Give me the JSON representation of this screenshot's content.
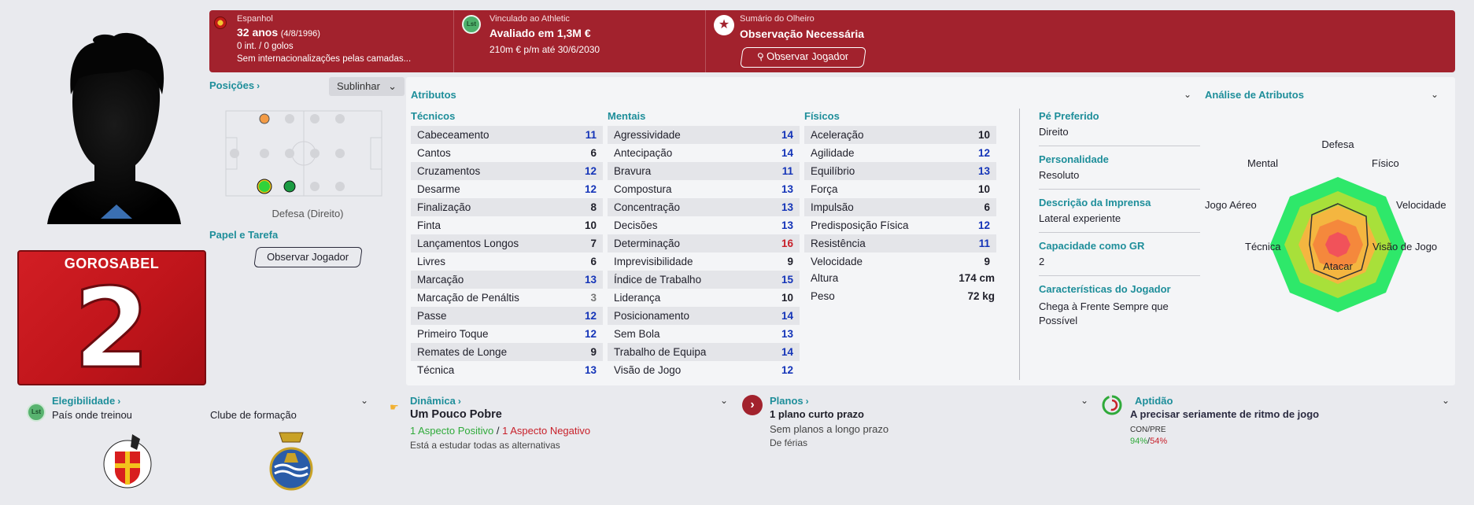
{
  "banner": {
    "nationality": "Espanhol",
    "age": "32 anos",
    "dob": "(4/8/1996)",
    "caps": "0 int. / 0 golos",
    "youth_caps": "Sem internacionalizações pelas camadas...",
    "contract_label": "Vinculado ao Athletic",
    "contract_badge": "Lst",
    "valuation": "Avaliado em 1,3M €",
    "wage": "210m € p/m até 30/6/2030",
    "scout_label": "Sumário do Olheiro",
    "scout_status": "Observação Necessária",
    "scout_button": "Observar Jogador"
  },
  "player": {
    "shirt_name": "GOROSABEL",
    "shirt_number": "2"
  },
  "positions": {
    "title": "Posições",
    "highlight_label": "Sublinhar",
    "position_text": "Defesa (Direito)",
    "role_title": "Papel e Tarefa",
    "scout_button": "Observar Jogador"
  },
  "attributes": {
    "title": "Atributos",
    "technical": {
      "title": "Técnicos",
      "rows": [
        {
          "name": "Cabeceamento",
          "value": "11"
        },
        {
          "name": "Cantos",
          "value": "6"
        },
        {
          "name": "Cruzamentos",
          "value": "12"
        },
        {
          "name": "Desarme",
          "value": "12"
        },
        {
          "name": "Finalização",
          "value": "8"
        },
        {
          "name": "Finta",
          "value": "10"
        },
        {
          "name": "Lançamentos Longos",
          "value": "7"
        },
        {
          "name": "Livres",
          "value": "6"
        },
        {
          "name": "Marcação",
          "value": "13"
        },
        {
          "name": "Marcação de Penáltis",
          "value": "3"
        },
        {
          "name": "Passe",
          "value": "12"
        },
        {
          "name": "Primeiro Toque",
          "value": "12"
        },
        {
          "name": "Remates de Longe",
          "value": "9"
        },
        {
          "name": "Técnica",
          "value": "13"
        }
      ]
    },
    "mental": {
      "title": "Mentais",
      "rows": [
        {
          "name": "Agressividade",
          "value": "14"
        },
        {
          "name": "Antecipação",
          "value": "14"
        },
        {
          "name": "Bravura",
          "value": "11"
        },
        {
          "name": "Compostura",
          "value": "13"
        },
        {
          "name": "Concentração",
          "value": "13"
        },
        {
          "name": "Decisões",
          "value": "13"
        },
        {
          "name": "Determinação",
          "value": "16"
        },
        {
          "name": "Imprevisibilidade",
          "value": "9"
        },
        {
          "name": "Índice de Trabalho",
          "value": "15"
        },
        {
          "name": "Liderança",
          "value": "10"
        },
        {
          "name": "Posicionamento",
          "value": "14"
        },
        {
          "name": "Sem Bola",
          "value": "13"
        },
        {
          "name": "Trabalho de Equipa",
          "value": "14"
        },
        {
          "name": "Visão de Jogo",
          "value": "12"
        }
      ]
    },
    "physical": {
      "title": "Físicos",
      "rows": [
        {
          "name": "Aceleração",
          "value": "10"
        },
        {
          "name": "Agilidade",
          "value": "12"
        },
        {
          "name": "Equilíbrio",
          "value": "13"
        },
        {
          "name": "Força",
          "value": "10"
        },
        {
          "name": "Impulsão",
          "value": "6"
        },
        {
          "name": "Predisposição Física",
          "value": "12"
        },
        {
          "name": "Resistência",
          "value": "11"
        },
        {
          "name": "Velocidade",
          "value": "9"
        }
      ],
      "height_label": "Altura",
      "height_value": "174 cm",
      "weight_label": "Peso",
      "weight_value": "72 kg"
    }
  },
  "info": {
    "preferred_foot_label": "Pé Preferido",
    "preferred_foot": "Direito",
    "personality_label": "Personalidade",
    "personality": "Resoluto",
    "media_label": "Descrição da Imprensa",
    "media": "Lateral experiente",
    "gk_label": "Capacidade como GR",
    "gk": "2",
    "traits_label": "Características do Jogador",
    "traits_1": "Chega à Frente Sempre que",
    "traits_2": "Possível"
  },
  "analysis": {
    "title": "Análise de Atributos",
    "labels": {
      "defesa": "Defesa",
      "fisico": "Físico",
      "velocidade": "Velocidade",
      "visao": "Visão de Jogo",
      "atacar": "Atacar",
      "tecnica": "Técnica",
      "aereo": "Jogo Aéreo",
      "mental": "Mental"
    }
  },
  "bottom": {
    "eligibility_title": "Elegibilidade",
    "eligibility_badge": "Lst",
    "trained_in": "País onde treinou",
    "youth_club": "Clube de formação",
    "dynamics_title": "Dinâmica",
    "dynamics_value": "Um Pouco Pobre",
    "positive": "1 Aspecto Positivo",
    "sep": "/",
    "negative": "1 Aspecto Negativo",
    "dynamics_note": "Está a estudar todas as alternativas",
    "plans_title": "Planos",
    "plans_short": "1 plano curto prazo",
    "plans_long": "Sem planos a longo prazo",
    "plans_note": "De férias",
    "fitness_title": "Aptidão",
    "fitness_value": "A precisar seriamente de ritmo de jogo",
    "fitness_label": "CON/PRE",
    "fitness_con": "94%",
    "fitness_sep": "/",
    "fitness_pre": "54%"
  },
  "colors": {
    "banner": "#a2222d",
    "accent": "#1e8e9a",
    "high": "#1434b8",
    "very_high": "#c8202a"
  }
}
